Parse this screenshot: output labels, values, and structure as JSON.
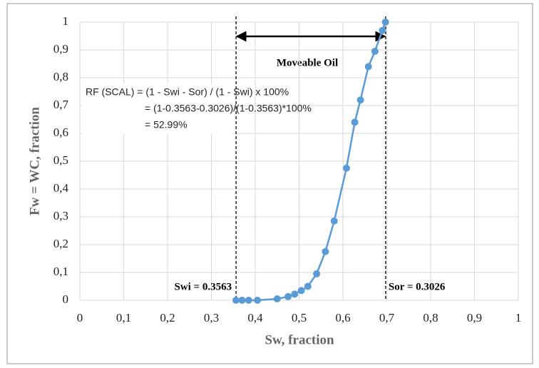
{
  "chart_data": {
    "type": "line",
    "xlabel": "Sw, fraction",
    "ylabel": "Fw = WC, fraction",
    "series": [
      {
        "name": "Fw",
        "color": "#5b9bd5",
        "x": [
          0.356,
          0.37,
          0.385,
          0.405,
          0.45,
          0.475,
          0.49,
          0.505,
          0.52,
          0.54,
          0.56,
          0.58,
          0.608,
          0.627,
          0.64,
          0.658,
          0.673,
          0.69,
          0.697
        ],
        "values": [
          0,
          0,
          0,
          0,
          0.005,
          0.013,
          0.022,
          0.035,
          0.05,
          0.095,
          0.175,
          0.285,
          0.475,
          0.64,
          0.72,
          0.84,
          0.895,
          0.97,
          1.0
        ]
      }
    ],
    "xlim": [
      0,
      1
    ],
    "ylim": [
      0,
      1
    ],
    "xticks": [
      0,
      {
        "value": 0.1,
        "label": "0,1"
      },
      {
        "value": 0.2,
        "label": "0,2"
      },
      {
        "value": 0.3,
        "label": "0,3"
      },
      {
        "value": 0.4,
        "label": "0,4"
      },
      {
        "value": 0.5,
        "label": "0,5"
      },
      {
        "value": 0.6,
        "label": "0,6"
      },
      {
        "value": 0.7,
        "label": "0,7"
      },
      {
        "value": 0.8,
        "label": "0,8"
      },
      {
        "value": 0.9,
        "label": "0,9"
      },
      1
    ],
    "yticks": [
      0,
      {
        "value": 0.1,
        "label": "0,1"
      },
      {
        "value": 0.2,
        "label": "0,2"
      },
      {
        "value": 0.3,
        "label": "0,3"
      },
      {
        "value": 0.4,
        "label": "0,4"
      },
      {
        "value": 0.5,
        "label": "0,5"
      },
      {
        "value": 0.6,
        "label": "0,6"
      },
      {
        "value": 0.7,
        "label": "0,7"
      },
      {
        "value": 0.8,
        "label": "0,8"
      },
      {
        "value": 0.9,
        "label": "0,9"
      },
      1
    ],
    "grid": true,
    "vlines": [
      {
        "x": 0.3563,
        "label": "Swi = 0.3563"
      },
      {
        "x": 0.6974,
        "label": "Sor = 0.3026"
      }
    ],
    "arrow_label": "Moveable Oil",
    "annotation": [
      "RF (SCAL) = (1 - Swi - Sor) / (1 - Swi) x 100%",
      "= (1-0.3563-0.3026)/(1-0.3563)*100%",
      "= 52.99%"
    ]
  }
}
